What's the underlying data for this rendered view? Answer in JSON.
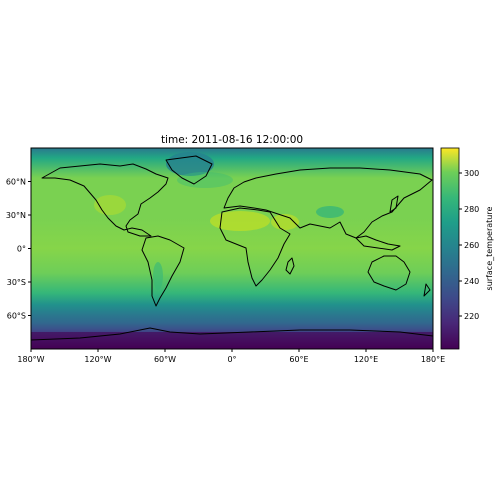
{
  "title": "time: 2011-08-16 12:00:00",
  "map": {
    "projection": "equirectangular",
    "x_ticks": [
      "180°W",
      "120°W",
      "60°W",
      "0°",
      "60°E",
      "120°E",
      "180°E"
    ],
    "y_ticks": [
      "60°N",
      "30°N",
      "0°",
      "30°S",
      "60°S"
    ],
    "colormap": "viridis",
    "variable": "surface_temperature"
  },
  "colorbar": {
    "label": "surface_temperature",
    "ticks": [
      "300",
      "280",
      "260",
      "240",
      "220"
    ],
    "range": [
      205,
      317
    ]
  },
  "chart_data": {
    "type": "heatmap",
    "title": "time: 2011-08-16 12:00:00",
    "xlim": [
      -180,
      180
    ],
    "ylim": [
      -90,
      90
    ],
    "x_ticks": [
      -180,
      -120,
      -60,
      0,
      60,
      120,
      180
    ],
    "y_ticks": [
      60,
      30,
      0,
      -30,
      -60
    ],
    "colorbar_label": "surface_temperature",
    "colorbar_ticks": [
      300,
      280,
      260,
      240,
      220
    ],
    "colorbar_range": [
      205,
      317
    ],
    "approx_values": {
      "sahara_arabia": 310,
      "tropical_ocean": 300,
      "north_atlantic": 285,
      "greenland": 265,
      "southern_ocean": 270,
      "antarctica": 210,
      "arctic_ocean": 275
    }
  }
}
